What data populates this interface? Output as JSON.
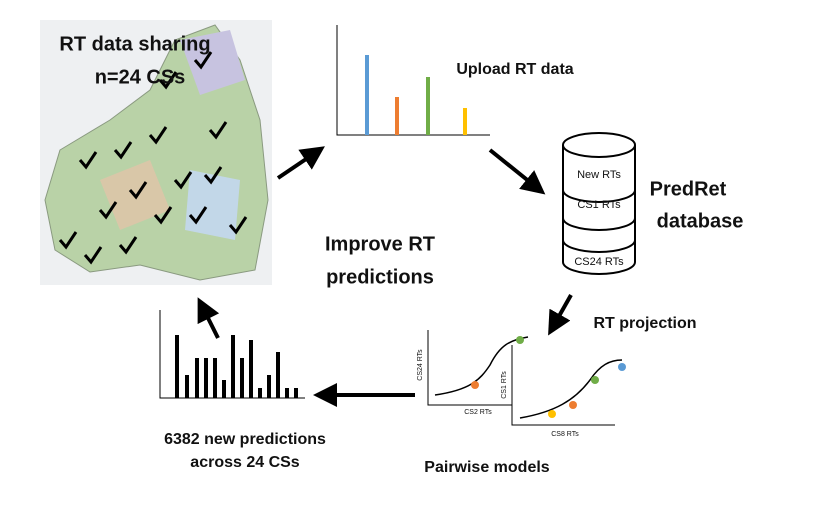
{
  "nodes": [
    {
      "label": "RT data sharing"
    },
    {
      "label": "n=24 CSs"
    },
    {
      "label": "Upload RT data"
    },
    {
      "label": "PredRet"
    },
    {
      "label": "database"
    },
    {
      "label": "Improve RT"
    },
    {
      "label": "predictions"
    },
    {
      "label": "RT projection"
    },
    {
      "label": "Pairwise models"
    },
    {
      "label": "6382 new predictions"
    },
    {
      "label": "across 24 CSs"
    }
  ],
  "database_rows": [
    "New RTs",
    "CS1 RTs",
    "CS24 RTs"
  ],
  "pairwise_axes": [
    {
      "x": "CS2 RTs",
      "y": "CS24 RTs"
    },
    {
      "x": "CS8 RTs",
      "y": "CS1 RTs"
    }
  ]
}
